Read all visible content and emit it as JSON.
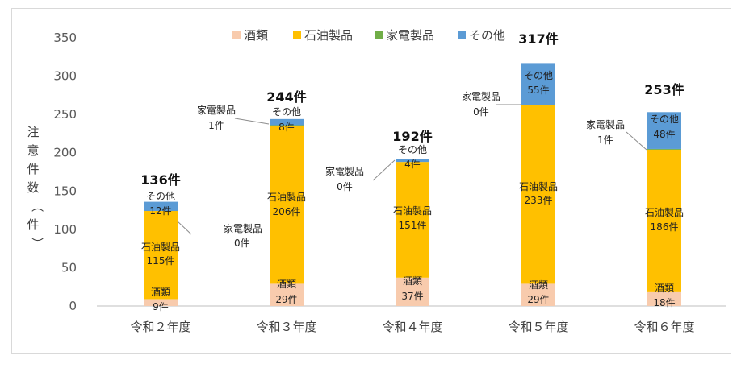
{
  "chart_data": {
    "type": "bar",
    "stacked": true,
    "ylabel_chars": [
      "注",
      "意",
      "件",
      "数",
      "（",
      "件",
      "）"
    ],
    "ylim": [
      0,
      350
    ],
    "yticks": [
      "0",
      "50",
      "100",
      "150",
      "200",
      "250",
      "300",
      "350"
    ],
    "categories": [
      "令和２年度",
      "令和３年度",
      "令和４年度",
      "令和５年度",
      "令和６年度"
    ],
    "totals": [
      "136件",
      "244件",
      "192件",
      "317件",
      "253件"
    ],
    "legend_position": "top",
    "series": [
      {
        "name": "酒類",
        "color": "#f8cbad",
        "values": [
          9,
          29,
          37,
          29,
          18
        ],
        "labels": [
          {
            "name": "酒類",
            "count": "9件"
          },
          {
            "name": "酒類",
            "count": "29件"
          },
          {
            "name": "酒類",
            "count": "37件"
          },
          {
            "name": "酒類",
            "count": "29件"
          },
          {
            "name": "酒類",
            "count": "18件"
          }
        ]
      },
      {
        "name": "石油製品",
        "color": "#ffc000",
        "values": [
          115,
          206,
          151,
          233,
          186
        ],
        "labels": [
          {
            "name": "石油製品",
            "count": "115件"
          },
          {
            "name": "石油製品",
            "count": "206件"
          },
          {
            "name": "石油製品",
            "count": "151件"
          },
          {
            "name": "石油製品",
            "count": "233件"
          },
          {
            "name": "石油製品",
            "count": "186件"
          }
        ]
      },
      {
        "name": "家電製品",
        "color": "#70ad47",
        "values": [
          0,
          1,
          0,
          0,
          1
        ],
        "labels": [
          {
            "name": "家電製品",
            "count": "0件"
          },
          {
            "name": "家電製品",
            "count": "1件"
          },
          {
            "name": "家電製品",
            "count": "0件"
          },
          {
            "name": "家電製品",
            "count": "0件"
          },
          {
            "name": "家電製品",
            "count": "1件"
          }
        ]
      },
      {
        "name": "その他",
        "color": "#5b9bd5",
        "values": [
          12,
          8,
          4,
          55,
          48
        ],
        "labels": [
          {
            "name": "その他",
            "count": "12件"
          },
          {
            "name": "その他",
            "count": "8件"
          },
          {
            "name": "その他",
            "count": "4件"
          },
          {
            "name": "その他",
            "count": "55件"
          },
          {
            "name": "その他",
            "count": "48件"
          }
        ]
      }
    ],
    "grid": false
  }
}
